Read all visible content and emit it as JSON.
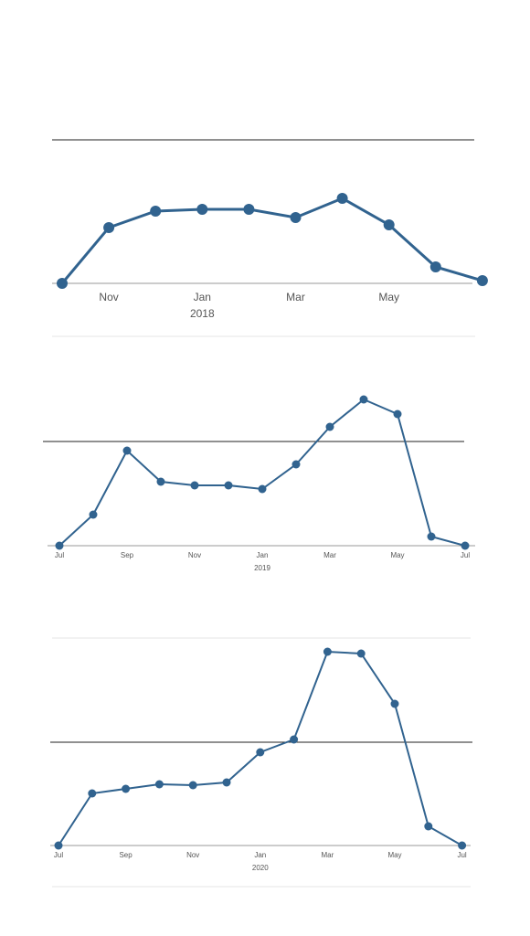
{
  "chart_data": [
    {
      "type": "line",
      "color": "#31638f",
      "year_label": "2018",
      "categories": [
        null,
        "Nov",
        null,
        "Jan",
        null,
        "Mar",
        null,
        "May",
        null,
        null
      ],
      "values": [
        0,
        61,
        79,
        81,
        81,
        72,
        93,
        64,
        18,
        3
      ],
      "ylim": [
        0,
        160
      ],
      "reference_line": 157
    },
    {
      "type": "line",
      "color": "#31638f",
      "year_label": "2019",
      "categories": [
        "Jul",
        null,
        "Sep",
        null,
        "Nov",
        null,
        "Jan",
        null,
        "Mar",
        null,
        "May",
        null,
        "Jul"
      ],
      "values": [
        0,
        34,
        104,
        70,
        66,
        66,
        62,
        89,
        130,
        160,
        144,
        10,
        0
      ],
      "ylim": [
        0,
        180
      ],
      "reference_line": 114
    },
    {
      "type": "line",
      "color": "#31638f",
      "year_label": "2020",
      "categories": [
        "Jul",
        null,
        "Sep",
        null,
        "Nov",
        null,
        "Jan",
        null,
        "Mar",
        null,
        "May",
        null,
        "Jul"
      ],
      "values": [
        0,
        57,
        62,
        67,
        66,
        69,
        102,
        116,
        212,
        210,
        155,
        21,
        0
      ],
      "ylim": [
        0,
        220
      ],
      "reference_line": 113
    }
  ]
}
